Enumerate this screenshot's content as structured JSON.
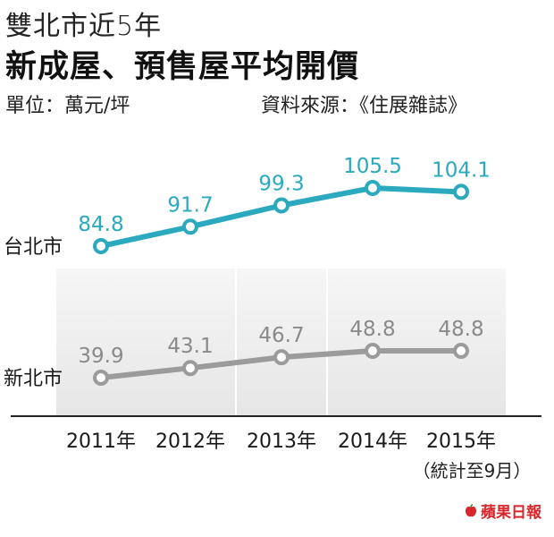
{
  "header": {
    "subtitle": "雙北市近5年",
    "title": "新成屋、預售屋平均開價",
    "unit": "單位：萬元/坪",
    "source": "資料來源：《住展雜誌》"
  },
  "chart_data": {
    "type": "line",
    "x": [
      "2011年",
      "2012年",
      "2013年",
      "2014年",
      "2015年"
    ],
    "x_note": "（統計至9月）",
    "series": [
      {
        "name": "台北市",
        "values": [
          84.8,
          91.7,
          99.3,
          105.5,
          104.1
        ],
        "color": "#2aa9bf"
      },
      {
        "name": "新北市",
        "values": [
          39.9,
          43.1,
          46.7,
          48.8,
          48.8
        ],
        "color": "#9b9b9b"
      }
    ],
    "label_color": "#8a8a8a",
    "grid": false,
    "legend": "left"
  },
  "brand": {
    "name": "蘋果日報",
    "color": "#d7262b",
    "icon": "apple-icon"
  }
}
